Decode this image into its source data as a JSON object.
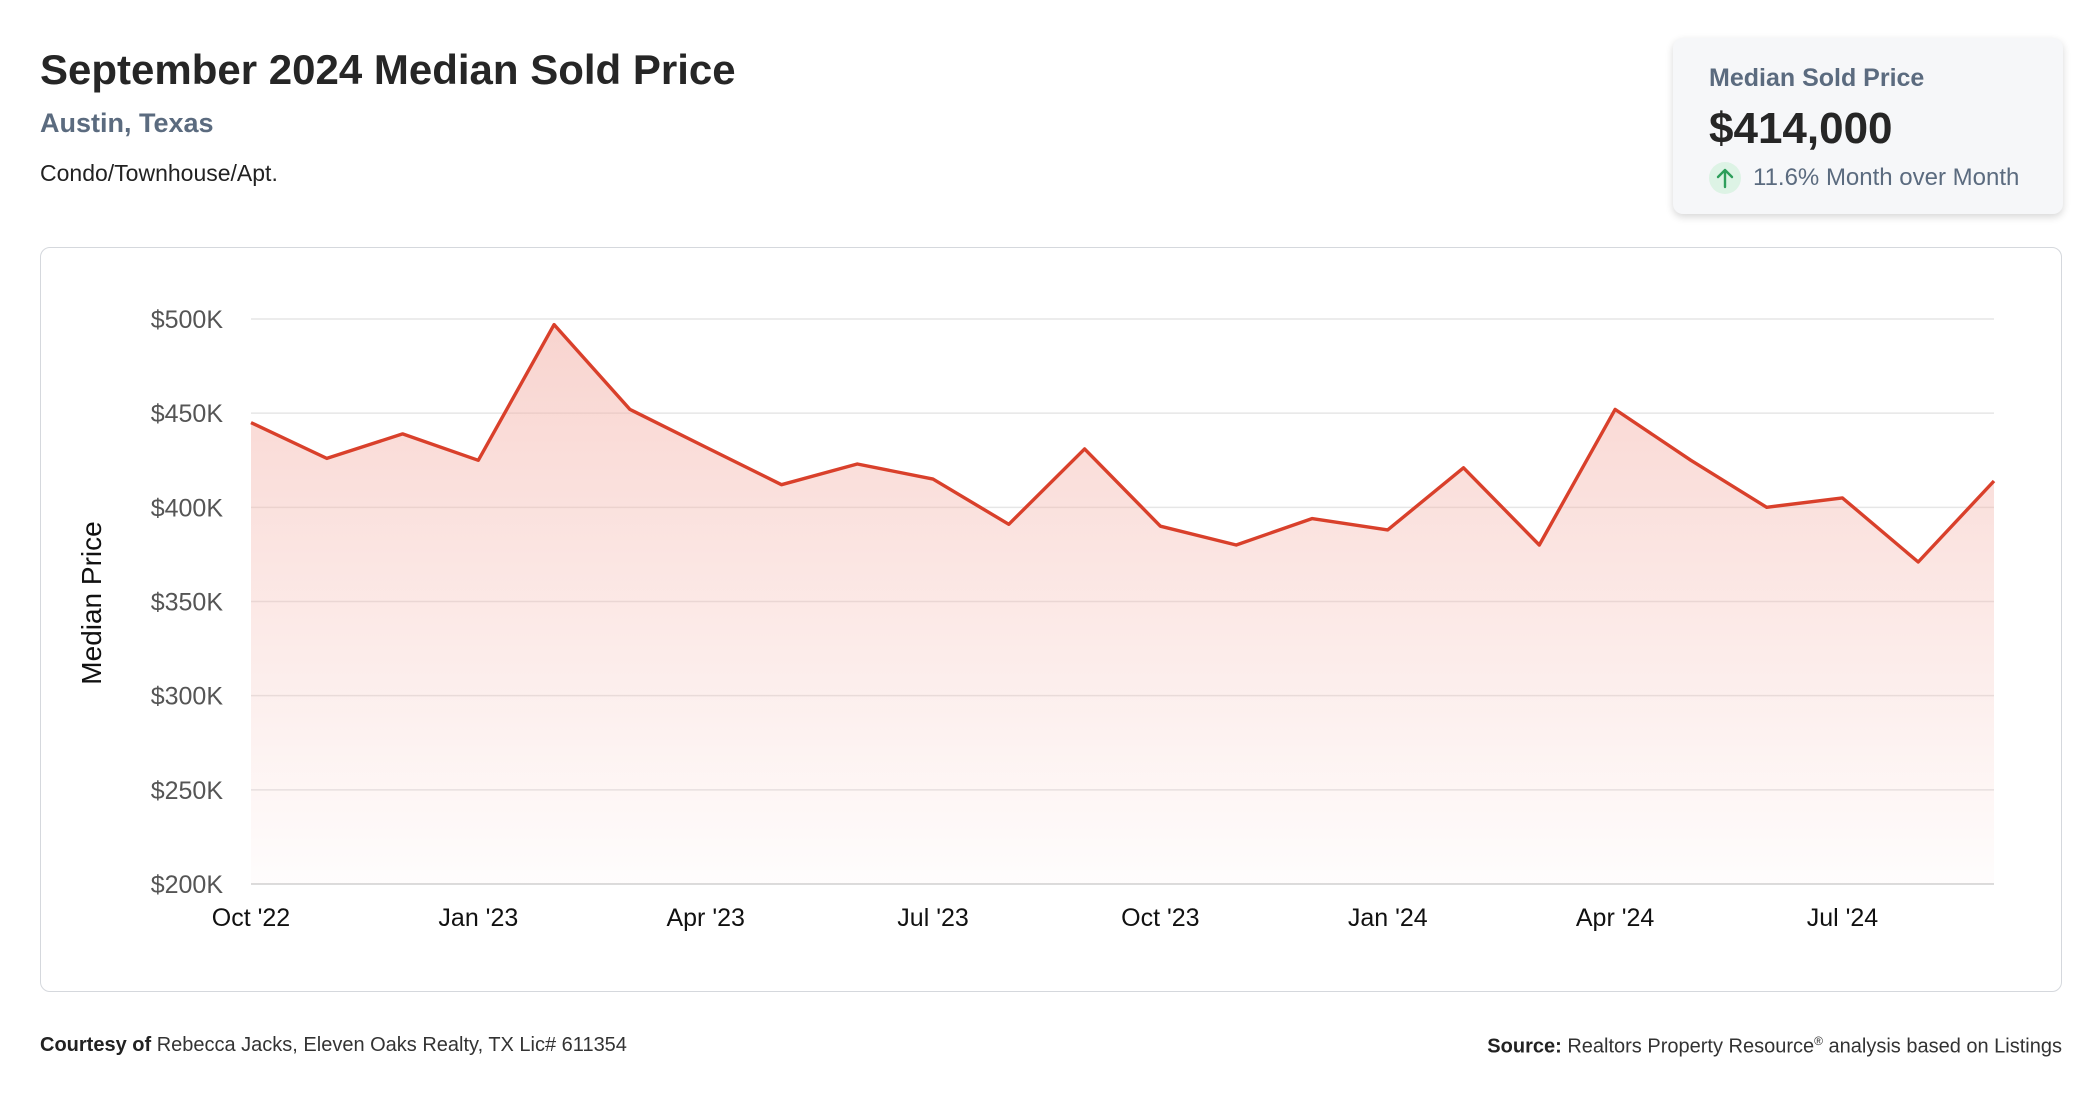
{
  "header": {
    "title": "September 2024 Median Sold Price",
    "location": "Austin, Texas",
    "property_type": "Condo/Townhouse/Apt."
  },
  "stat_card": {
    "label": "Median Sold Price",
    "value": "$414,000",
    "change": "11.6% Month over Month",
    "direction_icon": "arrow-up-icon",
    "change_color": "#2e9e5b"
  },
  "chart_data": {
    "type": "area",
    "title": "",
    "xlabel": "",
    "ylabel": "Median Price",
    "x": [
      "Oct '22",
      "Nov '22",
      "Dec '22",
      "Jan '23",
      "Feb '23",
      "Mar '23",
      "Apr '23",
      "May '23",
      "Jun '23",
      "Jul '23",
      "Aug '23",
      "Sep '23",
      "Oct '23",
      "Nov '23",
      "Dec '23",
      "Jan '24",
      "Feb '24",
      "Mar '24",
      "Apr '24",
      "May '24",
      "Jun '24",
      "Jul '24",
      "Aug '24",
      "Sep '24"
    ],
    "values": [
      445000,
      426000,
      439000,
      425000,
      497000,
      452000,
      432000,
      412000,
      423000,
      415000,
      391000,
      431000,
      390000,
      380000,
      394000,
      388000,
      421000,
      380000,
      452000,
      425000,
      400000,
      405000,
      371000,
      414000
    ],
    "x_tick_labels": [
      "Oct '22",
      "Jan '23",
      "Apr '23",
      "Jul '23",
      "Oct '23",
      "Jan '24",
      "Apr '24",
      "Jul '24"
    ],
    "x_tick_indices": [
      0,
      3,
      6,
      9,
      12,
      15,
      18,
      21
    ],
    "y_ticks": [
      200000,
      250000,
      300000,
      350000,
      400000,
      450000,
      500000
    ],
    "y_tick_labels": [
      "$200K",
      "$250K",
      "$300K",
      "$350K",
      "$400K",
      "$450K",
      "$500K"
    ],
    "ylim": [
      200000,
      500000
    ],
    "grid": true,
    "line_color": "#d9402b",
    "fill_color": "#f3b1a8"
  },
  "footer": {
    "courtesy_label": "Courtesy of",
    "courtesy_text": "Rebecca Jacks, Eleven Oaks Realty, TX Lic# 611354",
    "source_label": "Source:",
    "source_text_1": "Realtors Property Resource",
    "source_sup": "®",
    "source_text_2": "analysis based on Listings"
  }
}
